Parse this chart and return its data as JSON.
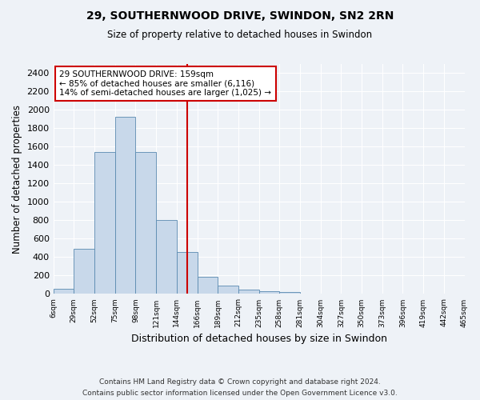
{
  "title_line1": "29, SOUTHERNWOOD DRIVE, SWINDON, SN2 2RN",
  "title_line2": "Size of property relative to detached houses in Swindon",
  "xlabel": "Distribution of detached houses by size in Swindon",
  "ylabel": "Number of detached properties",
  "bar_color": "#c8d8ea",
  "bar_edge_color": "#5a8ab0",
  "bin_labels": [
    "6sqm",
    "29sqm",
    "52sqm",
    "75sqm",
    "98sqm",
    "121sqm",
    "144sqm",
    "166sqm",
    "189sqm",
    "212sqm",
    "235sqm",
    "258sqm",
    "281sqm",
    "304sqm",
    "327sqm",
    "350sqm",
    "373sqm",
    "396sqm",
    "419sqm",
    "442sqm",
    "465sqm"
  ],
  "bar_heights": [
    60,
    490,
    1540,
    1930,
    1540,
    800,
    460,
    190,
    95,
    45,
    30,
    20,
    0,
    0,
    0,
    0,
    0,
    0,
    0,
    0
  ],
  "ylim": [
    0,
    2500
  ],
  "yticks": [
    0,
    200,
    400,
    600,
    800,
    1000,
    1200,
    1400,
    1600,
    1800,
    2000,
    2200,
    2400
  ],
  "marker_bin_index": 6.5,
  "annotation_line1": "29 SOUTHERNWOOD DRIVE: 159sqm",
  "annotation_line2": "← 85% of detached houses are smaller (6,116)",
  "annotation_line3": "14% of semi-detached houses are larger (1,025) →",
  "annotation_box_color": "#ffffff",
  "annotation_box_edge_color": "#cc0000",
  "marker_line_color": "#cc0000",
  "background_color": "#eef2f7",
  "grid_color": "#ffffff",
  "footer_line1": "Contains HM Land Registry data © Crown copyright and database right 2024.",
  "footer_line2": "Contains public sector information licensed under the Open Government Licence v3.0."
}
